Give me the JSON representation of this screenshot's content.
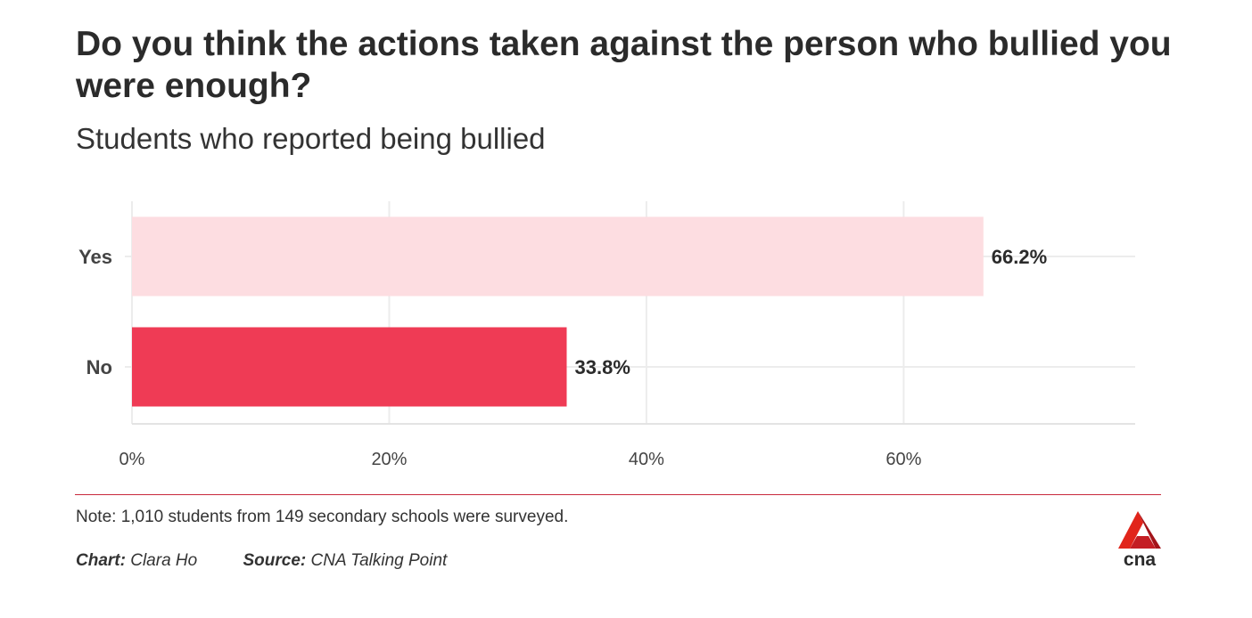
{
  "header": {
    "title": "Do you think the actions taken against the person who bullied you were enough?",
    "subtitle": "Students who reported being bullied"
  },
  "chart_data": {
    "type": "bar",
    "orientation": "horizontal",
    "categories": [
      "Yes",
      "No"
    ],
    "values": [
      66.2,
      33.8
    ],
    "value_labels": [
      "66.2%",
      "33.8%"
    ],
    "bar_colors": [
      "#fddde1",
      "#ef3b55"
    ],
    "xlim": [
      0,
      78
    ],
    "xticks": [
      0,
      20,
      40,
      60
    ],
    "xtick_labels": [
      "0%",
      "20%",
      "40%",
      "60%"
    ],
    "grid": true
  },
  "footer": {
    "note": "Note: 1,010 students from 149 secondary schools were surveyed.",
    "chart_label": "Chart:",
    "chart_author": "Clara Ho",
    "source_label": "Source:",
    "source_name": "CNA Talking Point",
    "logo_text": "cna"
  }
}
